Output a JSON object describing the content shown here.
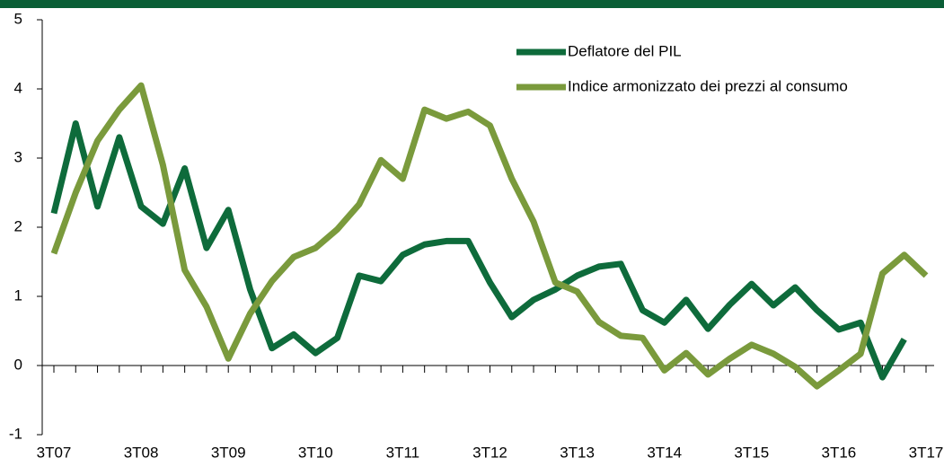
{
  "chart_data": {
    "type": "line",
    "categories": [
      "3T07",
      null,
      null,
      null,
      "3T08",
      null,
      null,
      null,
      "3T09",
      null,
      null,
      null,
      "3T10",
      null,
      null,
      null,
      "3T11",
      null,
      null,
      null,
      "3T12",
      null,
      null,
      null,
      "3T13",
      null,
      null,
      null,
      "3T14",
      null,
      null,
      null,
      "3T15",
      null,
      null,
      null,
      "3T16",
      null,
      null,
      null,
      "3T17"
    ],
    "series": [
      {
        "name": "Deflatore del PIL",
        "color": "#0e6b3b",
        "values": [
          2.2,
          3.5,
          2.3,
          3.3,
          2.3,
          2.05,
          2.85,
          1.7,
          2.25,
          1.1,
          0.25,
          0.45,
          0.18,
          0.4,
          1.3,
          1.22,
          1.6,
          1.75,
          1.8,
          1.8,
          1.2,
          0.7,
          0.95,
          1.1,
          1.3,
          1.43,
          1.47,
          0.8,
          0.62,
          0.95,
          0.53,
          0.88,
          1.18,
          0.87,
          1.13,
          0.8,
          0.52,
          0.62,
          -0.17,
          0.38,
          null
        ]
      },
      {
        "name": "Indice armonizzato dei prezzi al consumo",
        "color": "#7a9a3c",
        "values": [
          1.62,
          2.5,
          3.25,
          3.7,
          4.05,
          2.9,
          1.38,
          0.85,
          0.1,
          0.75,
          1.22,
          1.57,
          1.7,
          1.97,
          2.33,
          2.97,
          2.7,
          3.7,
          3.57,
          3.67,
          3.47,
          2.7,
          2.08,
          1.2,
          1.07,
          0.63,
          0.43,
          0.4,
          -0.07,
          0.18,
          -0.13,
          0.1,
          0.3,
          0.17,
          -0.02,
          -0.3,
          -0.07,
          0.17,
          1.33,
          1.6,
          1.3
        ]
      }
    ],
    "ylim": [
      -1,
      5
    ],
    "yticks": [
      -1,
      0,
      1,
      2,
      3,
      4,
      5
    ]
  }
}
